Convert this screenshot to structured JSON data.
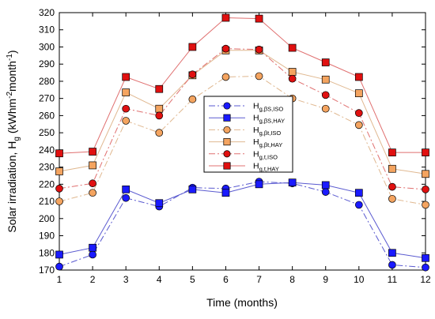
{
  "chart_data": {
    "type": "line",
    "xlabel": "Time (months)",
    "ylabel": "Solar irradiation, H",
    "ylabel_sub": "g",
    "ylabel_units": " (kWhm",
    "ylabel_sup1": "-2",
    "ylabel_mid": "month",
    "ylabel_sup2": "-1",
    "ylabel_end": ")",
    "xlim": [
      1,
      12
    ],
    "ylim": [
      170,
      320
    ],
    "x_ticks": [
      1,
      2,
      3,
      4,
      5,
      6,
      7,
      8,
      9,
      10,
      11,
      12
    ],
    "y_ticks": [
      170,
      180,
      190,
      200,
      210,
      220,
      230,
      240,
      250,
      260,
      270,
      280,
      290,
      300,
      310,
      320
    ],
    "x": [
      1,
      2,
      3,
      4,
      5,
      6,
      7,
      8,
      9,
      10,
      11,
      12
    ],
    "grid": false,
    "legend_position": "center",
    "series": [
      {
        "name": "H",
        "sub": "g,βS,ISO",
        "color": "#1a1aff",
        "line_color": "#5a5ad0",
        "marker": "circle",
        "dash": "8,3,2,3",
        "values": [
          172,
          179,
          212,
          207,
          218,
          217.5,
          221.5,
          220.5,
          215.5,
          208,
          173,
          171.5
        ]
      },
      {
        "name": "H",
        "sub": "g,βS,HAY",
        "color": "#1a1aff",
        "line_color": "#5a5ad0",
        "marker": "square",
        "dash": "",
        "values": [
          179,
          183,
          217,
          209,
          217,
          215,
          220,
          221,
          219.5,
          215,
          180,
          177
        ]
      },
      {
        "name": "H",
        "sub": "g,βt,ISO",
        "color": "#f4a460",
        "line_color": "#e0b890",
        "marker": "circle",
        "dash": "8,3,2,3",
        "values": [
          210,
          215,
          257,
          250,
          269.5,
          282.5,
          283,
          270,
          264,
          254.5,
          211.5,
          208
        ]
      },
      {
        "name": "H",
        "sub": "g,βt,HAY",
        "color": "#f4a460",
        "line_color": "#e0b890",
        "marker": "square",
        "dash": "",
        "values": [
          227.5,
          231,
          273.5,
          264,
          283.5,
          298,
          298,
          285.5,
          281,
          273,
          229,
          226
        ]
      },
      {
        "name": "H",
        "sub": "g,t,ISO",
        "color": "#e01010",
        "line_color": "#e07070",
        "marker": "circle",
        "dash": "8,3,2,3",
        "values": [
          217.5,
          220.5,
          264,
          260,
          284,
          299,
          298.5,
          281.5,
          272,
          261.5,
          218.5,
          217
        ]
      },
      {
        "name": "H",
        "sub": "g,t,HAY",
        "color": "#e01010",
        "line_color": "#e07070",
        "marker": "square",
        "dash": "",
        "values": [
          238,
          239,
          282.5,
          275.5,
          300,
          317,
          316.5,
          299.5,
          291,
          282.5,
          238.5,
          238.5
        ]
      }
    ]
  }
}
